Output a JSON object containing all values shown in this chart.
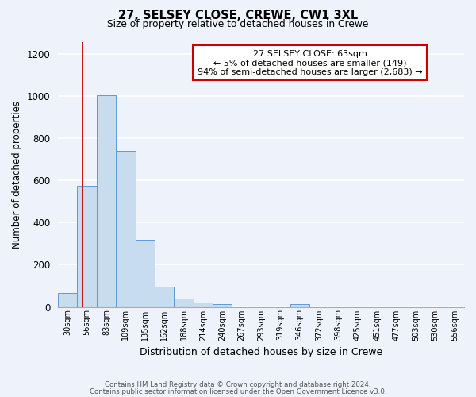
{
  "title_line1": "27, SELSEY CLOSE, CREWE, CW1 3XL",
  "title_line2": "Size of property relative to detached houses in Crewe",
  "xlabel": "Distribution of detached houses by size in Crewe",
  "ylabel": "Number of detached properties",
  "bin_labels": [
    "30sqm",
    "56sqm",
    "83sqm",
    "109sqm",
    "135sqm",
    "162sqm",
    "188sqm",
    "214sqm",
    "240sqm",
    "267sqm",
    "293sqm",
    "319sqm",
    "346sqm",
    "372sqm",
    "398sqm",
    "425sqm",
    "451sqm",
    "477sqm",
    "503sqm",
    "530sqm",
    "556sqm"
  ],
  "bar_values": [
    67,
    575,
    1005,
    743,
    317,
    95,
    40,
    22,
    13,
    0,
    0,
    0,
    12,
    0,
    0,
    0,
    0,
    0,
    0,
    0,
    0
  ],
  "bar_color": "#c8dcf0",
  "bar_edge_color": "#5b9bd5",
  "ylim": [
    0,
    1260
  ],
  "yticks": [
    0,
    200,
    400,
    600,
    800,
    1000,
    1200
  ],
  "vline_color": "#cc0000",
  "annotation_title": "27 SELSEY CLOSE: 63sqm",
  "annotation_line1": "← 5% of detached houses are smaller (149)",
  "annotation_line2": "94% of semi-detached houses are larger (2,683) →",
  "annotation_box_color": "#ffffff",
  "annotation_box_edge": "#cc0000",
  "footer_line1": "Contains HM Land Registry data © Crown copyright and database right 2024.",
  "footer_line2": "Contains public sector information licensed under the Open Government Licence v3.0.",
  "bg_color": "#eef2fa",
  "plot_bg_color": "#eef2fa",
  "grid_color": "#ffffff"
}
